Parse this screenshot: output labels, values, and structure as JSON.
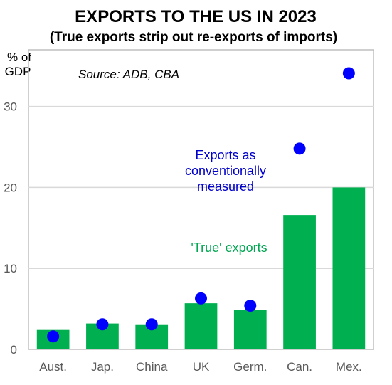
{
  "chart_data": {
    "type": "bar",
    "title": "EXPORTS TO THE US IN 2023",
    "subtitle": "(True exports strip out re-exports of imports)",
    "ylabel_line1": "% of",
    "ylabel_line2": "GDP",
    "source": "Source: ADB, CBA",
    "categories": [
      "Aust.",
      "Jap.",
      "China",
      "UK",
      "Germ.",
      "Can.",
      "Mex."
    ],
    "ylim": [
      0,
      37
    ],
    "yticks": [
      0,
      10,
      20,
      30
    ],
    "grid": true,
    "series": [
      {
        "name": "'True' exports",
        "type": "bar",
        "color": "#00B050",
        "values": [
          2.4,
          3.2,
          3.1,
          5.7,
          4.9,
          16.6,
          20.0
        ]
      },
      {
        "name": "Exports as conventionally measured",
        "type": "scatter",
        "color": "#0000FF",
        "values": [
          1.6,
          3.1,
          3.1,
          6.3,
          5.4,
          24.8,
          34.1
        ]
      }
    ],
    "annotations": {
      "conventional_lines": [
        "Exports as",
        "conventionally",
        "measured"
      ],
      "true_label": "'True' exports"
    }
  }
}
